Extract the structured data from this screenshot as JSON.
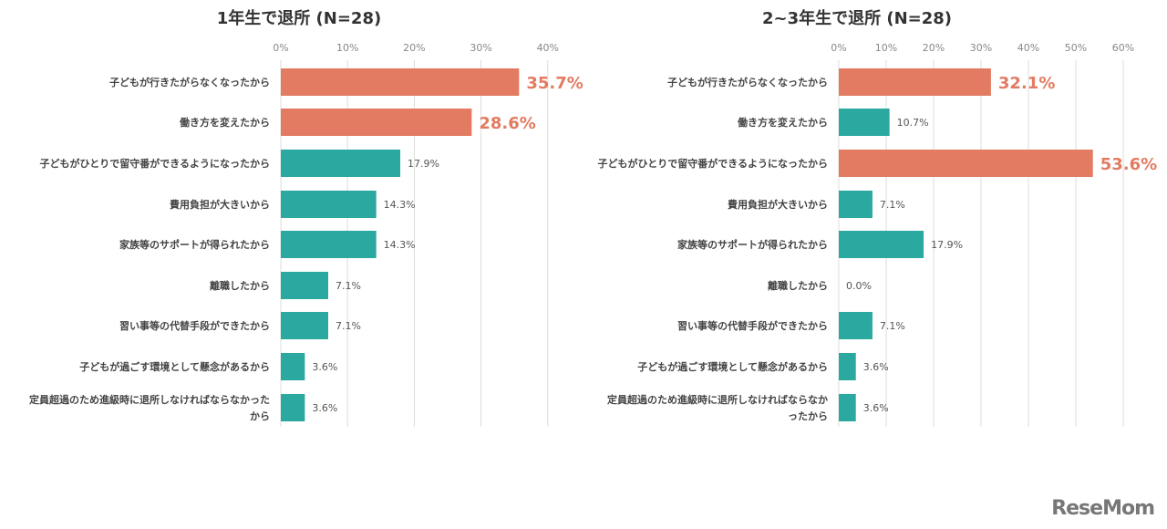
{
  "colors": {
    "highlight": "#e27b61",
    "normal": "#2ba89f",
    "grid": "#dddddd",
    "label": "#444444",
    "tick": "#888888"
  },
  "logo": "ReseMom",
  "chart_data": [
    {
      "type": "bar",
      "orientation": "horizontal",
      "title": "1年生で退所 (N=28)",
      "xlim": [
        0,
        40
      ],
      "ticks": [
        "0%",
        "10%",
        "20%",
        "30%",
        "40%"
      ],
      "grid": true,
      "categories": [
        "子どもが行きたがらなくなったから",
        "働き方を変えたから",
        "子どもがひとりで留守番ができるようになったから",
        "費用負担が大きいから",
        "家族等のサポートが得られたから",
        "離職したから",
        "習い事等の代替手段ができたから",
        "子どもが過ごす環境として懸念があるから",
        "定員超過のため進級時に退所しなければならなかったから"
      ],
      "values": [
        35.7,
        28.6,
        17.9,
        14.3,
        14.3,
        7.1,
        7.1,
        3.6,
        3.6
      ],
      "labels": [
        "35.7%",
        "28.6%",
        "17.9%",
        "14.3%",
        "14.3%",
        "7.1%",
        "7.1%",
        "3.6%",
        "3.6%"
      ],
      "highlighted": [
        true,
        true,
        false,
        false,
        false,
        false,
        false,
        false,
        false
      ]
    },
    {
      "type": "bar",
      "orientation": "horizontal",
      "title": "2~3年生で退所 (N=28)",
      "xlim": [
        0,
        60
      ],
      "ticks": [
        "0%",
        "10%",
        "20%",
        "30%",
        "40%",
        "50%",
        "60%"
      ],
      "grid": true,
      "categories": [
        "子どもが行きたがらなくなったから",
        "働き方を変えたから",
        "子どもがひとりで留守番ができるようになったから",
        "費用負担が大きいから",
        "家族等のサポートが得られたから",
        "離職したから",
        "習い事等の代替手段ができたから",
        "子どもが過ごす環境として懸念があるから",
        "定員超過のため進級時に退所しなければならなかったから"
      ],
      "values": [
        32.1,
        10.7,
        53.6,
        7.1,
        17.9,
        0.0,
        7.1,
        3.6,
        3.6
      ],
      "labels": [
        "32.1%",
        "10.7%",
        "53.6%",
        "7.1%",
        "17.9%",
        "0.0%",
        "7.1%",
        "3.6%",
        "3.6%"
      ],
      "highlighted": [
        true,
        false,
        true,
        false,
        false,
        false,
        false,
        false,
        false
      ]
    }
  ]
}
